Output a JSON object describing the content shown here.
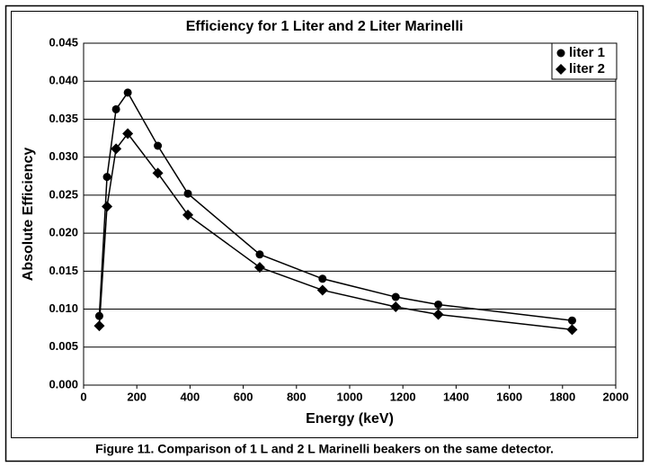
{
  "chart_data": {
    "type": "line",
    "title": "Efficiency for 1 Liter and 2 Liter Marinelli",
    "x_label": "Energy (keV)",
    "y_label": "Absolute Efficiency",
    "caption": "Figure 11.  Comparison of 1 L and 2 L Marinelli beakers on the same detector.",
    "x": [
      59,
      88,
      122,
      166,
      279,
      392,
      662,
      898,
      1173,
      1333,
      1836
    ],
    "series": [
      {
        "name": "liter 1",
        "color": "#000000",
        "marker": "circle",
        "values": [
          0.0091,
          0.0274,
          0.0363,
          0.0385,
          0.0315,
          0.0252,
          0.0172,
          0.014,
          0.0116,
          0.0106,
          0.0085
        ]
      },
      {
        "name": "liter 2",
        "color": "#000000",
        "marker": "diamond",
        "values": [
          0.0078,
          0.0235,
          0.0311,
          0.0331,
          0.0279,
          0.0224,
          0.0155,
          0.0125,
          0.0103,
          0.0093,
          0.0073
        ]
      }
    ],
    "xlim": [
      0,
      2000
    ],
    "xticks": [
      0,
      200,
      400,
      600,
      800,
      1000,
      1200,
      1400,
      1600,
      1800,
      2000
    ],
    "ylim": [
      0,
      0.045
    ],
    "yticks": [
      {
        "value": 0,
        "label": "0.000"
      },
      {
        "value": 0.005,
        "label": "0.005"
      },
      {
        "value": 0.01,
        "label": "0.010"
      },
      {
        "value": 0.015,
        "label": "0.015"
      },
      {
        "value": 0.02,
        "label": "0.020"
      },
      {
        "value": 0.025,
        "label": "0.025"
      },
      {
        "value": 0.03,
        "label": "0.030"
      },
      {
        "value": 0.035,
        "label": "0.035"
      },
      {
        "value": 0.04,
        "label": "0.040"
      },
      {
        "value": 0.045,
        "label": "0.045"
      }
    ],
    "grid": true,
    "legend": "upper right"
  }
}
